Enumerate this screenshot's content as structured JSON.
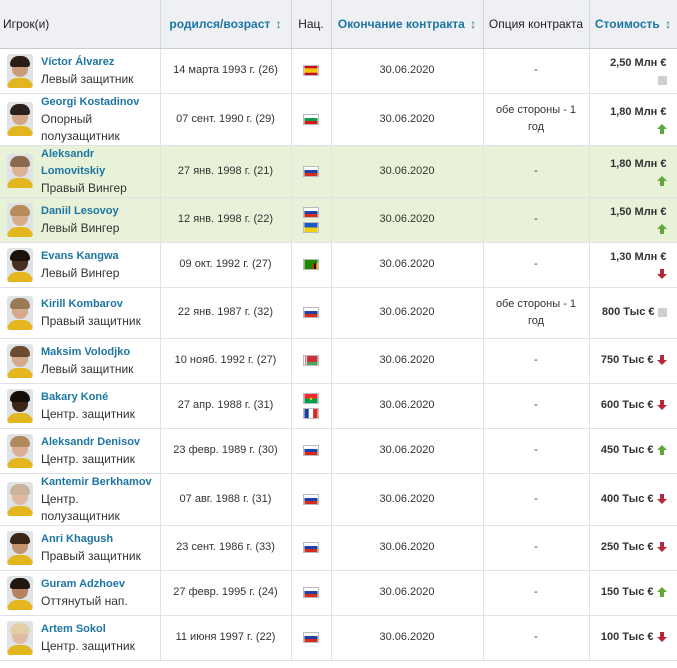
{
  "header": {
    "player": "Игрок(и)",
    "born": "родился/возраст",
    "nat": "Нац.",
    "contract_end": "Окончание контракта",
    "option": "Опция контракта",
    "value": "Стоимость",
    "sort_arrow": "↕"
  },
  "players": [
    {
      "name": "Víctor Álvarez",
      "position": "Левый защитник",
      "born": "14 марта 1993 г. (26)",
      "flags": [
        "spain"
      ],
      "contract_end": "30.06.2020",
      "option": "-",
      "value": "2,50 Млн €",
      "trend": "same",
      "highlight": false,
      "skin": "#c99b7a",
      "hair": "#2b1d14"
    },
    {
      "name": "Georgi Kostadinov",
      "position": "Опорный полузащитник",
      "born": "07 сент. 1990 г. (29)",
      "flags": [
        "bulgaria"
      ],
      "contract_end": "30.06.2020",
      "option": "обе стороны - 1 год",
      "value": "1,80 Млн €",
      "trend": "up",
      "highlight": false,
      "skin": "#d1a586",
      "hair": "#2a2019"
    },
    {
      "name": "Aleksandr Lomovitskiy",
      "position": "Правый Вингер",
      "born": "27 янв. 1998 г. (21)",
      "flags": [
        "russia"
      ],
      "contract_end": "30.06.2020",
      "option": "-",
      "value": "1,80 Млн €",
      "trend": "up",
      "highlight": true,
      "skin": "#dcb297",
      "hair": "#8a6a4c"
    },
    {
      "name": "Daniil Lesovoy",
      "position": "Левый Вингер",
      "born": "12 янв. 1998 г. (22)",
      "flags": [
        "russia",
        "ukraine"
      ],
      "contract_end": "30.06.2020",
      "option": "-",
      "value": "1,50 Млн €",
      "trend": "up",
      "highlight": true,
      "skin": "#d8ad8f",
      "hair": "#b58c5a"
    },
    {
      "name": "Evans Kangwa",
      "position": "Левый Вингер",
      "born": "09 окт. 1992 г. (27)",
      "flags": [
        "zambia"
      ],
      "contract_end": "30.06.2020",
      "option": "-",
      "value": "1,30 Млн €",
      "trend": "down",
      "highlight": false,
      "skin": "#4a2e1f",
      "hair": "#1a120c"
    },
    {
      "name": "Kirill Kombarov",
      "position": "Правый защитник",
      "born": "22 янв. 1987 г. (32)",
      "flags": [
        "russia"
      ],
      "contract_end": "30.06.2020",
      "option": "обе стороны - 1 год",
      "value": "800 Тыс €",
      "trend": "same",
      "highlight": false,
      "skin": "#d6a98a",
      "hair": "#9a7a55"
    },
    {
      "name": "Maksim Volodjko",
      "position": "Левый защитник",
      "born": "10 нояб. 1992 г. (27)",
      "flags": [
        "belarus"
      ],
      "contract_end": "30.06.2020",
      "option": "-",
      "value": "750 Тыс €",
      "trend": "down",
      "highlight": false,
      "skin": "#d4a98c",
      "hair": "#6b4a2e"
    },
    {
      "name": "Bakary Koné",
      "position": "Центр. защитник",
      "born": "27 апр. 1988 г. (31)",
      "flags": [
        "burkina",
        "france"
      ],
      "contract_end": "30.06.2020",
      "option": "-",
      "value": "600 Тыс €",
      "trend": "down",
      "highlight": false,
      "skin": "#3d2518",
      "hair": "#140d08"
    },
    {
      "name": "Aleksandr Denisov",
      "position": "Центр. защитник",
      "born": "23 февр. 1989 г. (30)",
      "flags": [
        "russia"
      ],
      "contract_end": "30.06.2020",
      "option": "-",
      "value": "450 Тыс €",
      "trend": "up",
      "highlight": false,
      "skin": "#dcb096",
      "hair": "#b08a5e"
    },
    {
      "name": "Kantemir Berkhamov",
      "position": "Центр. полузащитник",
      "born": "07 авг. 1988 г. (31)",
      "flags": [
        "russia"
      ],
      "contract_end": "30.06.2020",
      "option": "-",
      "value": "400 Тыс €",
      "trend": "down",
      "highlight": false,
      "skin": "#dfb9a0",
      "hair": "#c9b49a"
    },
    {
      "name": "Anri Khagush",
      "position": "Правый защитник",
      "born": "23 сент. 1986 г. (33)",
      "flags": [
        "russia"
      ],
      "contract_end": "30.06.2020",
      "option": "-",
      "value": "250 Тыс €",
      "trend": "down",
      "highlight": false,
      "skin": "#c4936f",
      "hair": "#3a2618"
    },
    {
      "name": "Guram Adzhoev",
      "position": "Оттянутый нап.",
      "born": "27 февр. 1995 г. (24)",
      "flags": [
        "russia"
      ],
      "contract_end": "30.06.2020",
      "option": "-",
      "value": "150 Тыс €",
      "trend": "up",
      "highlight": false,
      "skin": "#b58362",
      "hair": "#231710"
    },
    {
      "name": "Artem Sokol",
      "position": "Центр. защитник",
      "born": "11 июня 1997 г. (22)",
      "flags": [
        "russia"
      ],
      "contract_end": "30.06.2020",
      "option": "-",
      "value": "100 Тыс €",
      "trend": "down",
      "highlight": false,
      "skin": "#e0bca4",
      "hair": "#e2cfa8"
    }
  ],
  "colors": {
    "link": "#1d75a3",
    "highlight_row": "#e8f2d9",
    "trend_up": "#5fa839",
    "trend_down": "#b5283b",
    "trend_same": "#cfcfcf"
  }
}
